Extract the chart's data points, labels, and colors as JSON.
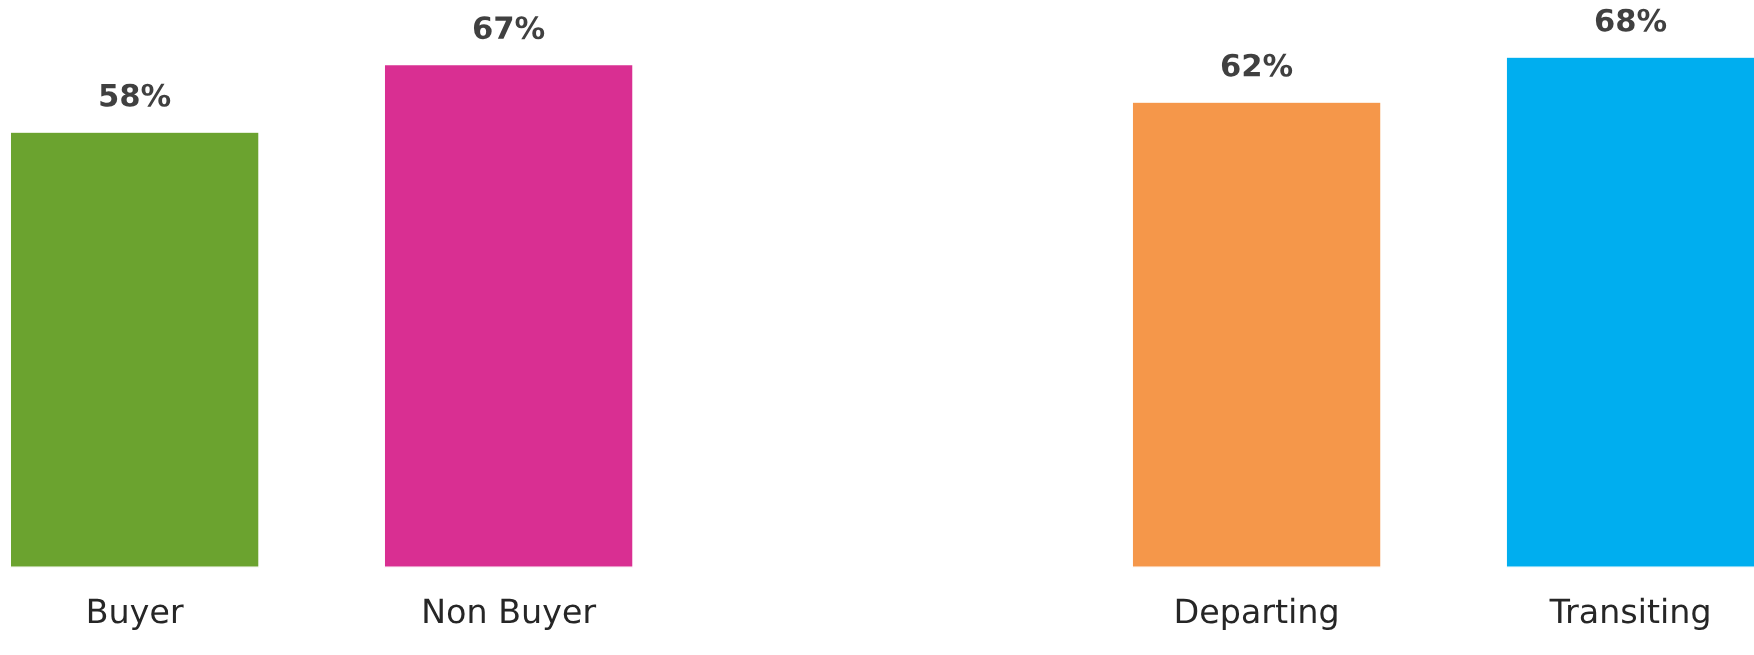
{
  "chart_data": {
    "type": "bar",
    "categories": [
      "Buyer",
      "Non Buyer",
      null,
      "Departing",
      "Transiting"
    ],
    "values": [
      58,
      67,
      null,
      62,
      68
    ],
    "colors": [
      "#6ba32f",
      "#d92f92",
      null,
      "#f5974a",
      "#00aeef"
    ],
    "value_labels": [
      "58%",
      "67%",
      null,
      "62%",
      "68%"
    ]
  }
}
